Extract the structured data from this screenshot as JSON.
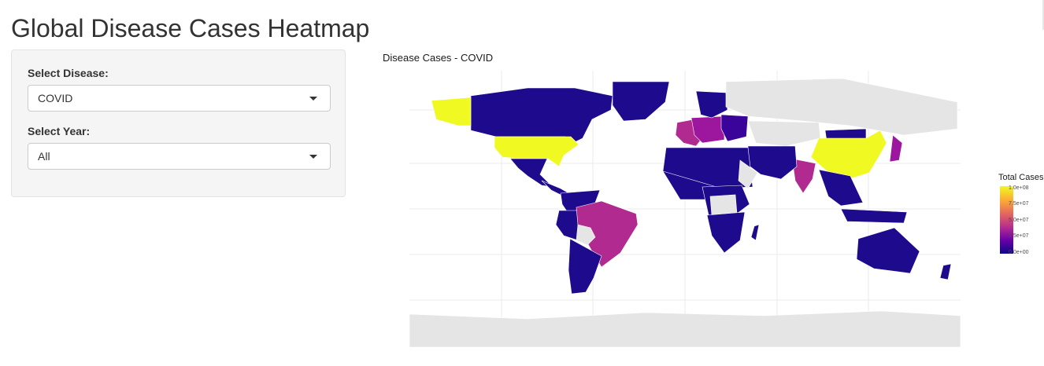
{
  "page": {
    "title": "Global Disease Cases Heatmap"
  },
  "sidebar": {
    "disease_label": "Select Disease:",
    "disease_value": "COVID",
    "year_label": "Select Year:",
    "year_value": "All"
  },
  "plot": {
    "title": "Disease Cases - COVID",
    "legend": {
      "title": "Total Cases",
      "ticks": [
        "1.0e+08",
        "7.5e+07",
        "5.0e+07",
        "2.5e+07",
        "0.0e+00"
      ]
    }
  },
  "chart_data": {
    "type": "heatmap",
    "title": "Disease Cases - COVID",
    "legend_title": "Total Cases",
    "legend_placement": "right",
    "color_scale": {
      "name": "plasma",
      "min": 0,
      "max": 100000000,
      "low_color": "#0d0887",
      "high_color": "#f0f921",
      "missing_color": "#e5e5e5"
    },
    "color_levels": {
      "very_high": "#f0f921",
      "medium_high": "#b12a90",
      "medium": "#9c179e",
      "low": "#3a049a",
      "very_low": "#1e0a8c",
      "no_data": "#e5e5e5"
    },
    "grid": true
  }
}
